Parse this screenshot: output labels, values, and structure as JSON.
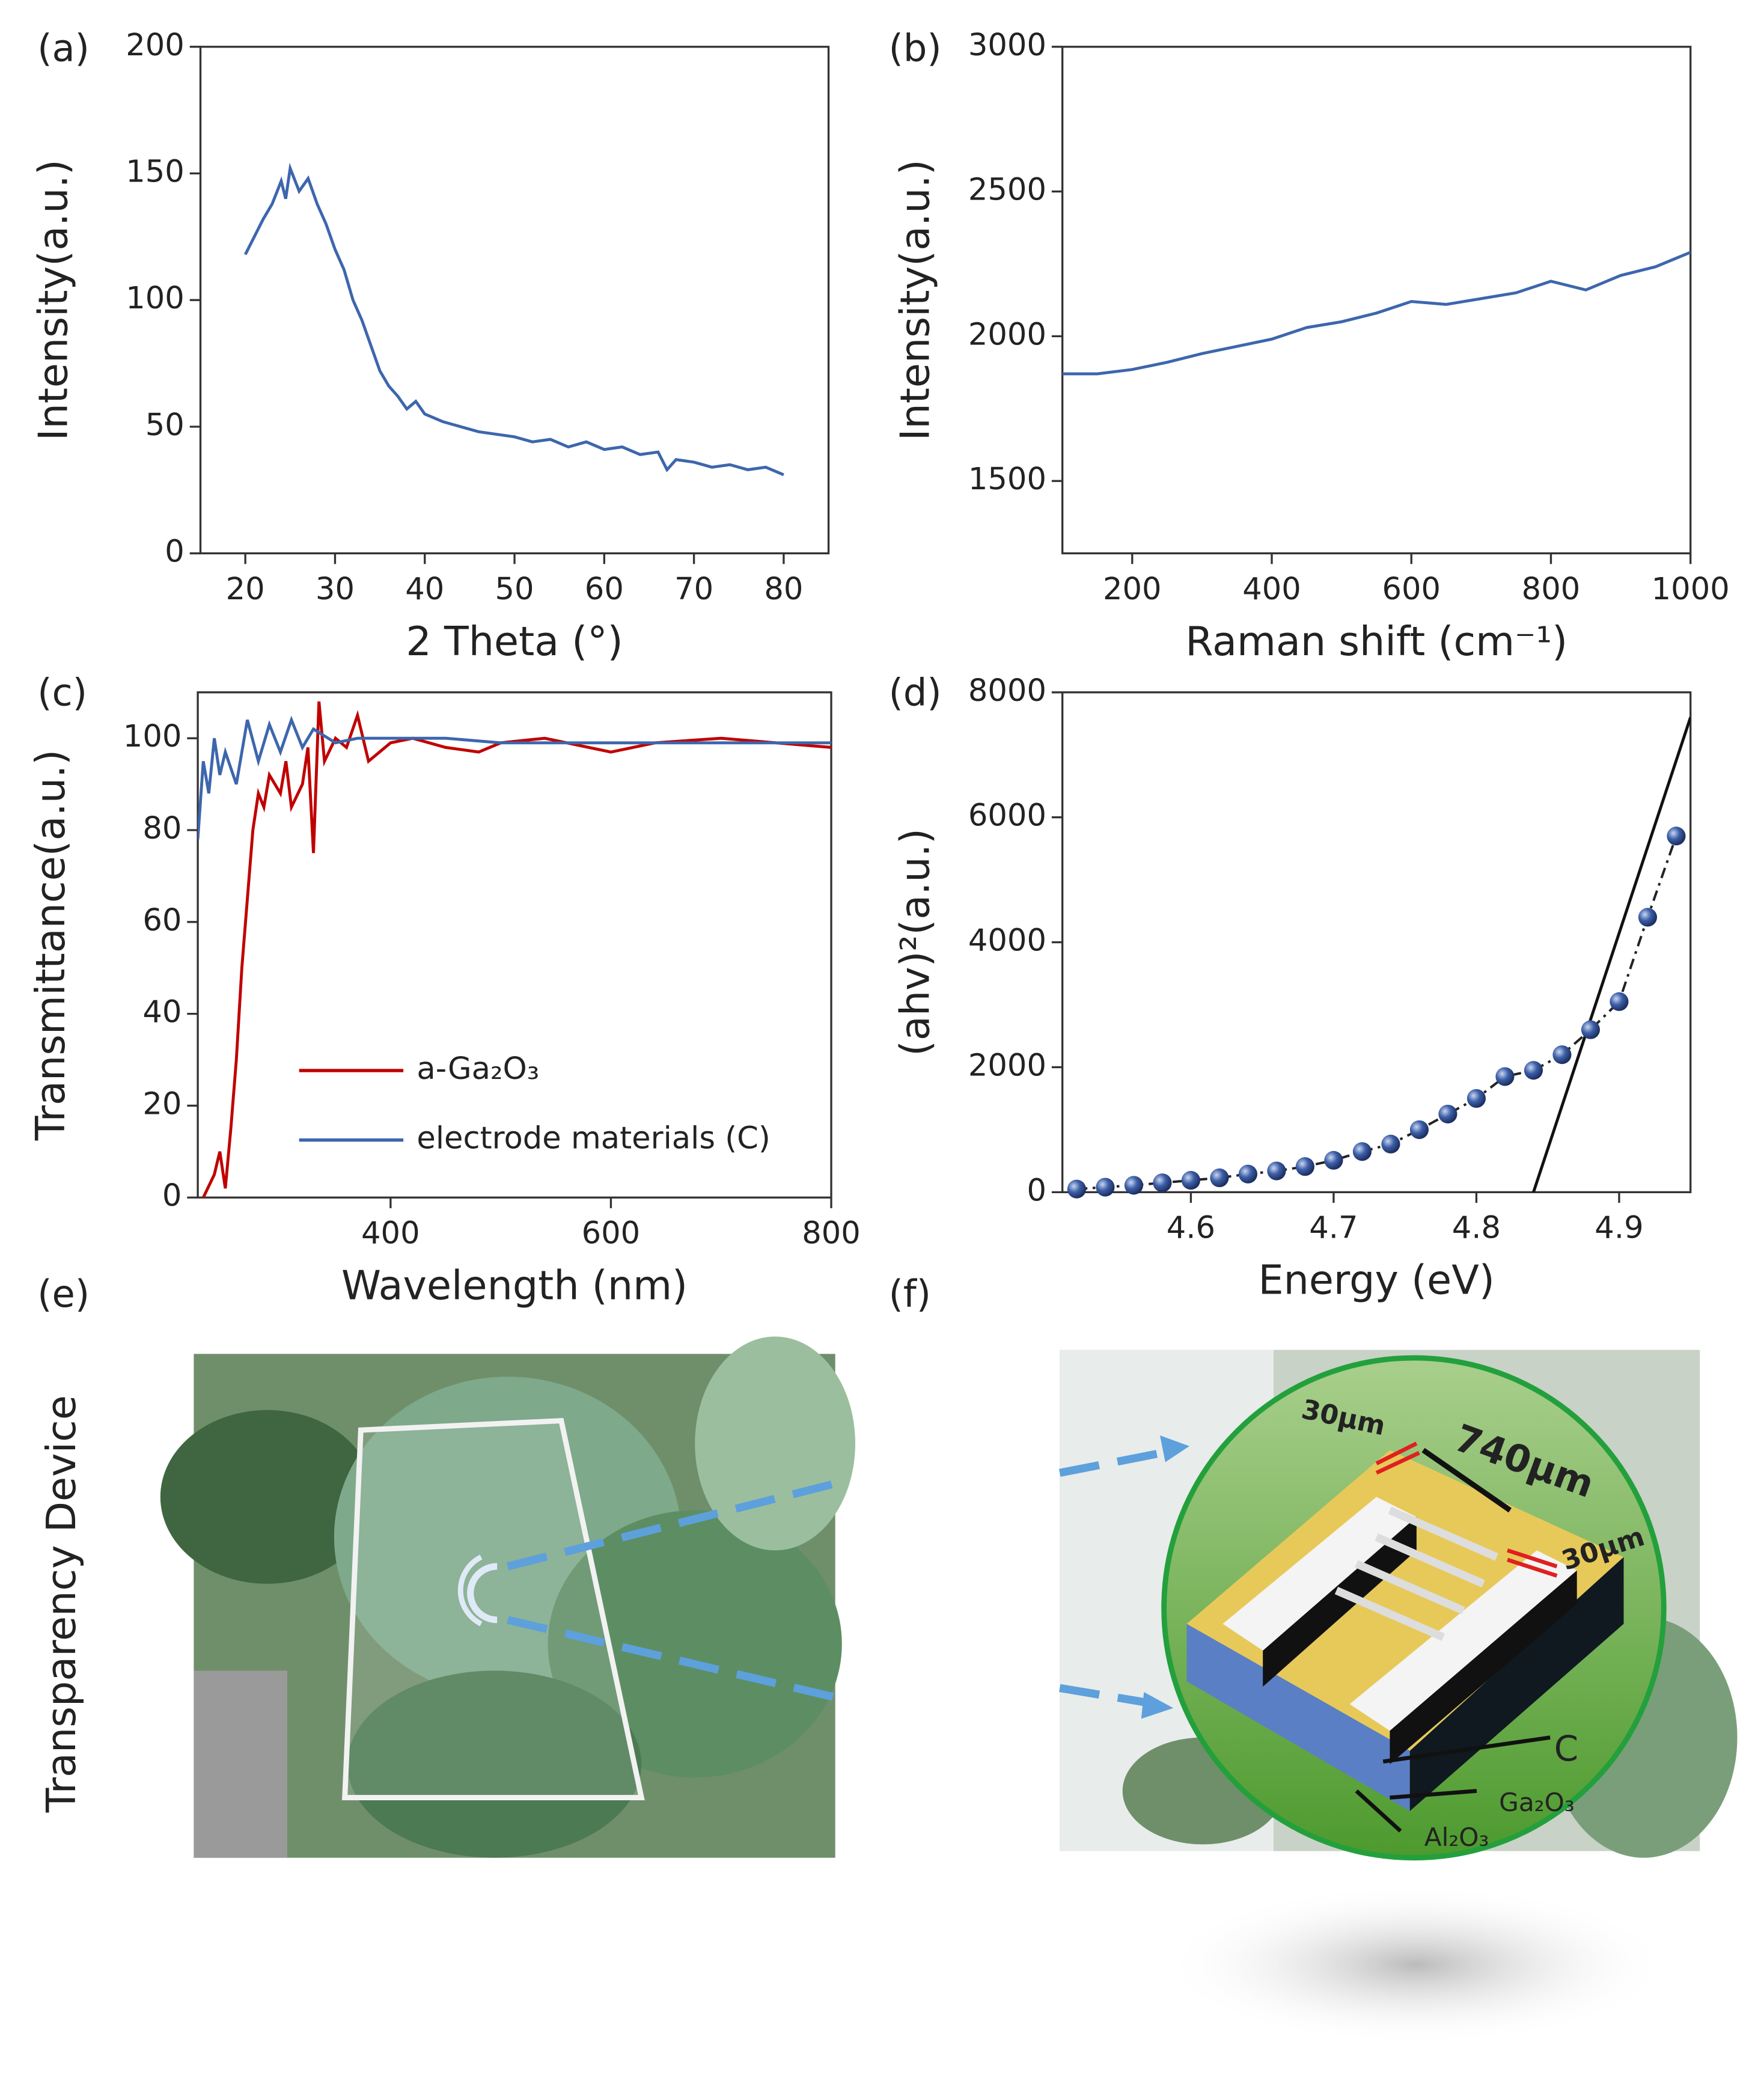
{
  "chart_data": [
    {
      "type": "line",
      "label": "(a)",
      "x_label": "2 Theta (°)",
      "y_label": "Intensity(a.u.)",
      "xlim": [
        15,
        85
      ],
      "ylim": [
        0,
        200
      ],
      "xticks": [
        20,
        30,
        40,
        50,
        60,
        70,
        80
      ],
      "yticks": [
        0,
        50,
        100,
        150,
        200
      ],
      "color": "#3d66ad",
      "x": [
        20,
        21,
        22,
        23,
        24,
        24.5,
        25,
        26,
        27,
        28,
        29,
        30,
        31,
        32,
        33,
        34,
        35,
        36,
        37,
        38,
        39,
        40,
        42,
        44,
        46,
        48,
        50,
        52,
        54,
        56,
        58,
        60,
        62,
        64,
        66,
        67,
        68,
        70,
        72,
        74,
        76,
        78,
        80
      ],
      "values": [
        118,
        125,
        132,
        138,
        147,
        140,
        152,
        143,
        148,
        138,
        130,
        120,
        112,
        100,
        92,
        82,
        72,
        66,
        62,
        57,
        60,
        55,
        52,
        50,
        48,
        47,
        46,
        44,
        45,
        42,
        44,
        41,
        42,
        39,
        40,
        33,
        37,
        36,
        34,
        35,
        33,
        34,
        31
      ]
    },
    {
      "type": "line",
      "label": "(b)",
      "x_label": "Raman shift (cm⁻¹)",
      "y_label": "Intensity(a.u.)",
      "xlim": [
        100,
        1000
      ],
      "ylim": [
        1250,
        3000
      ],
      "xticks": [
        200,
        400,
        600,
        800,
        1000
      ],
      "yticks": [
        1500,
        2000,
        2500,
        3000
      ],
      "color": "#3d66ad",
      "x": [
        100,
        150,
        200,
        250,
        300,
        350,
        400,
        450,
        500,
        550,
        600,
        650,
        700,
        750,
        800,
        850,
        900,
        950,
        1000
      ],
      "values": [
        1870,
        1870,
        1885,
        1910,
        1940,
        1965,
        1990,
        2030,
        2050,
        2080,
        2120,
        2110,
        2130,
        2150,
        2190,
        2160,
        2210,
        2240,
        2290
      ]
    },
    {
      "type": "line",
      "label": "(c)",
      "x_label": "Wavelength (nm)",
      "y_label": "Transmittance(a.u.)",
      "xlim": [
        225,
        800
      ],
      "ylim": [
        0,
        110
      ],
      "xticks": [
        400,
        600,
        800
      ],
      "yticks": [
        0,
        20,
        40,
        60,
        80,
        100
      ],
      "legend": "lower center",
      "series": [
        {
          "name": "a-Ga₂O₃",
          "color": "#c00000",
          "x": [
            230,
            240,
            245,
            250,
            255,
            260,
            265,
            270,
            275,
            280,
            285,
            290,
            300,
            305,
            310,
            320,
            325,
            330,
            335,
            340,
            350,
            360,
            370,
            380,
            390,
            400,
            420,
            450,
            480,
            500,
            540,
            560,
            600,
            640,
            700,
            750,
            800
          ],
          "values": [
            0,
            5,
            10,
            2,
            15,
            30,
            50,
            65,
            80,
            88,
            85,
            92,
            88,
            95,
            85,
            90,
            98,
            75,
            108,
            95,
            100,
            98,
            105,
            95,
            97,
            99,
            100,
            98,
            97,
            99,
            100,
            99,
            97,
            99,
            100,
            99,
            98
          ]
        },
        {
          "name": "electrode materials (C)",
          "color": "#3d66ad",
          "x": [
            225,
            230,
            235,
            240,
            245,
            250,
            260,
            270,
            280,
            290,
            300,
            310,
            320,
            330,
            350,
            370,
            400,
            450,
            500,
            600,
            700,
            800
          ],
          "values": [
            78,
            95,
            88,
            100,
            92,
            97,
            90,
            104,
            95,
            103,
            97,
            104,
            98,
            102,
            99,
            100,
            100,
            100,
            99,
            99,
            99,
            99
          ]
        }
      ]
    },
    {
      "type": "scatter",
      "label": "(d)",
      "x_label": "Energy (eV)",
      "y_label": "(ahv)²(a.u.)",
      "xlim": [
        4.51,
        4.95
      ],
      "ylim": [
        0,
        8000
      ],
      "xticks": [
        4.6,
        4.7,
        4.8,
        4.9
      ],
      "yticks": [
        0,
        2000,
        4000,
        6000,
        8000
      ],
      "color": "#3d5fa8",
      "x": [
        4.52,
        4.54,
        4.56,
        4.58,
        4.6,
        4.62,
        4.64,
        4.66,
        4.68,
        4.7,
        4.72,
        4.74,
        4.76,
        4.78,
        4.8,
        4.82,
        4.84,
        4.86,
        4.88,
        4.9,
        4.92,
        4.94
      ],
      "values": [
        50,
        80,
        110,
        150,
        190,
        230,
        290,
        340,
        410,
        510,
        650,
        770,
        1000,
        1250,
        1500,
        1850,
        1950,
        2200,
        2600,
        3050,
        4400,
        5700
      ],
      "fit_line": {
        "x": [
          4.84,
          4.95
        ],
        "y": [
          0,
          7600
        ]
      }
    }
  ],
  "panels": {
    "e": {
      "label": "(e)",
      "side_label": "Transparency Device"
    },
    "f": {
      "label": "(f)",
      "annotations": [
        "30μm",
        "740μm",
        "30μm",
        "C",
        "Ga₂O₃",
        "Al₂O₃"
      ]
    }
  }
}
